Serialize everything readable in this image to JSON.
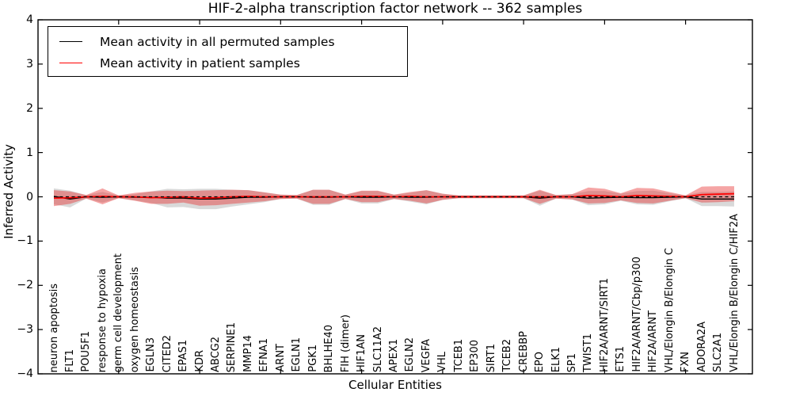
{
  "title": "HIF-2-alpha transcription factor network -- 362 samples",
  "legend": {
    "items": [
      {
        "label": "Mean activity in all permuted samples",
        "color": "#000000"
      },
      {
        "label": "Mean activity in patient samples",
        "color": "#ff0000"
      }
    ],
    "position": "upper left"
  },
  "colors": {
    "permuted_line": "#000000",
    "permuted_band": "rgba(128,128,128,0.30)",
    "patient_line": "#ff0000",
    "patient_band": "rgba(230,40,40,0.42)",
    "zero_line": "#000000",
    "frame": "#000000"
  },
  "chart_data": {
    "type": "line",
    "title": "HIF-2-alpha transcription factor network -- 362 samples",
    "xlabel": "Cellular Entities",
    "ylabel": "Inferred Activity",
    "ylim": [
      -4,
      4
    ],
    "ytick_labels": [
      "4",
      "3",
      "2",
      "1",
      "0",
      "−1",
      "−2",
      "−3",
      "−4"
    ],
    "ytick_values": [
      4,
      3,
      2,
      1,
      0,
      -1,
      -2,
      -3,
      -4
    ],
    "xtick_indices": [
      4,
      9,
      14,
      19,
      24,
      29,
      34,
      39
    ],
    "grid": false,
    "legend_position": "upper left",
    "band_meaning": "shaded region = mean ± 1 std of inferred activity",
    "zero_reference_line": {
      "y": 0,
      "style": "dashed",
      "color": "#000000"
    },
    "categories": [
      "neuron apoptosis",
      "FLT1",
      "POU5F1",
      "response to hypoxia",
      "germ cell development",
      "oxygen homeostasis",
      "EGLN3",
      "CITED2",
      "EPAS1",
      "KDR",
      "ABCG2",
      "SERPINE1",
      "MMP14",
      "EFNA1",
      "ARNT",
      "EGLN1",
      "PGK1",
      "BHLHE40",
      "FIH (dimer)",
      "HIF1AN",
      "SLC11A2",
      "APEX1",
      "EGLN2",
      "VEGFA",
      "VHL",
      "TCEB1",
      "EP300",
      "SIRT1",
      "TCEB2",
      "CREBBP",
      "EPO",
      "ELK1",
      "SP1",
      "TWIST1",
      "HIF2A/ARNT/SIRT1",
      "ETS1",
      "HIF2A/ARNT/Cbp/p300",
      "HIF2A/ARNT",
      "VHL/Elongin B/Elongin C",
      "FXN",
      "ADORA2A",
      "SLC2A1",
      "VHL/Elongin B/Elongin C/HIF2A"
    ],
    "series": [
      {
        "name": "Mean activity in all permuted samples",
        "line_color": "#000000",
        "band_color": "rgba(128,128,128,0.30)",
        "means": [
          0.01,
          -0.05,
          0,
          -0.01,
          0,
          -0.01,
          -0.01,
          -0.03,
          -0.03,
          -0.05,
          -0.05,
          -0.03,
          -0.01,
          -0.01,
          0,
          0,
          -0.01,
          -0.01,
          0,
          -0.01,
          -0.01,
          0,
          -0.01,
          -0.01,
          0,
          0,
          0,
          0,
          0,
          0,
          -0.03,
          0,
          0,
          -0.03,
          -0.02,
          -0.01,
          -0.02,
          -0.02,
          -0.01,
          0,
          -0.05,
          -0.05,
          -0.05
        ],
        "stds": [
          0.18,
          0.19,
          0.04,
          0.12,
          0.03,
          0.07,
          0.13,
          0.21,
          0.2,
          0.23,
          0.23,
          0.19,
          0.16,
          0.11,
          0.05,
          0.04,
          0.17,
          0.17,
          0.05,
          0.14,
          0.14,
          0.05,
          0.1,
          0.16,
          0.07,
          0.03,
          0.03,
          0.03,
          0.03,
          0.03,
          0.17,
          0.04,
          0.06,
          0.16,
          0.15,
          0.08,
          0.15,
          0.16,
          0.09,
          0.03,
          0.16,
          0.16,
          0.17
        ]
      },
      {
        "name": "Mean activity in patient samples",
        "line_color": "#ff0000",
        "band_color": "rgba(230,40,40,0.42)",
        "means": [
          -0.03,
          -0.02,
          0,
          0.01,
          0,
          0,
          -0.02,
          -0.01,
          0,
          -0.03,
          -0.02,
          0,
          0.01,
          0,
          0,
          0,
          0,
          0,
          0,
          0.01,
          0.01,
          0,
          0.01,
          0,
          0,
          0,
          0,
          0,
          0,
          0,
          0,
          0,
          0,
          0.03,
          0.02,
          0,
          0.03,
          0.02,
          0.01,
          0,
          0.05,
          0.06,
          0.07
        ],
        "stds": [
          0.18,
          0.14,
          0.04,
          0.18,
          0.03,
          0.09,
          0.14,
          0.15,
          0.13,
          0.17,
          0.17,
          0.16,
          0.14,
          0.1,
          0.05,
          0.04,
          0.16,
          0.16,
          0.05,
          0.13,
          0.13,
          0.05,
          0.1,
          0.15,
          0.07,
          0.03,
          0.03,
          0.03,
          0.03,
          0.03,
          0.16,
          0.04,
          0.06,
          0.18,
          0.16,
          0.08,
          0.17,
          0.17,
          0.1,
          0.03,
          0.18,
          0.18,
          0.17
        ]
      }
    ]
  }
}
